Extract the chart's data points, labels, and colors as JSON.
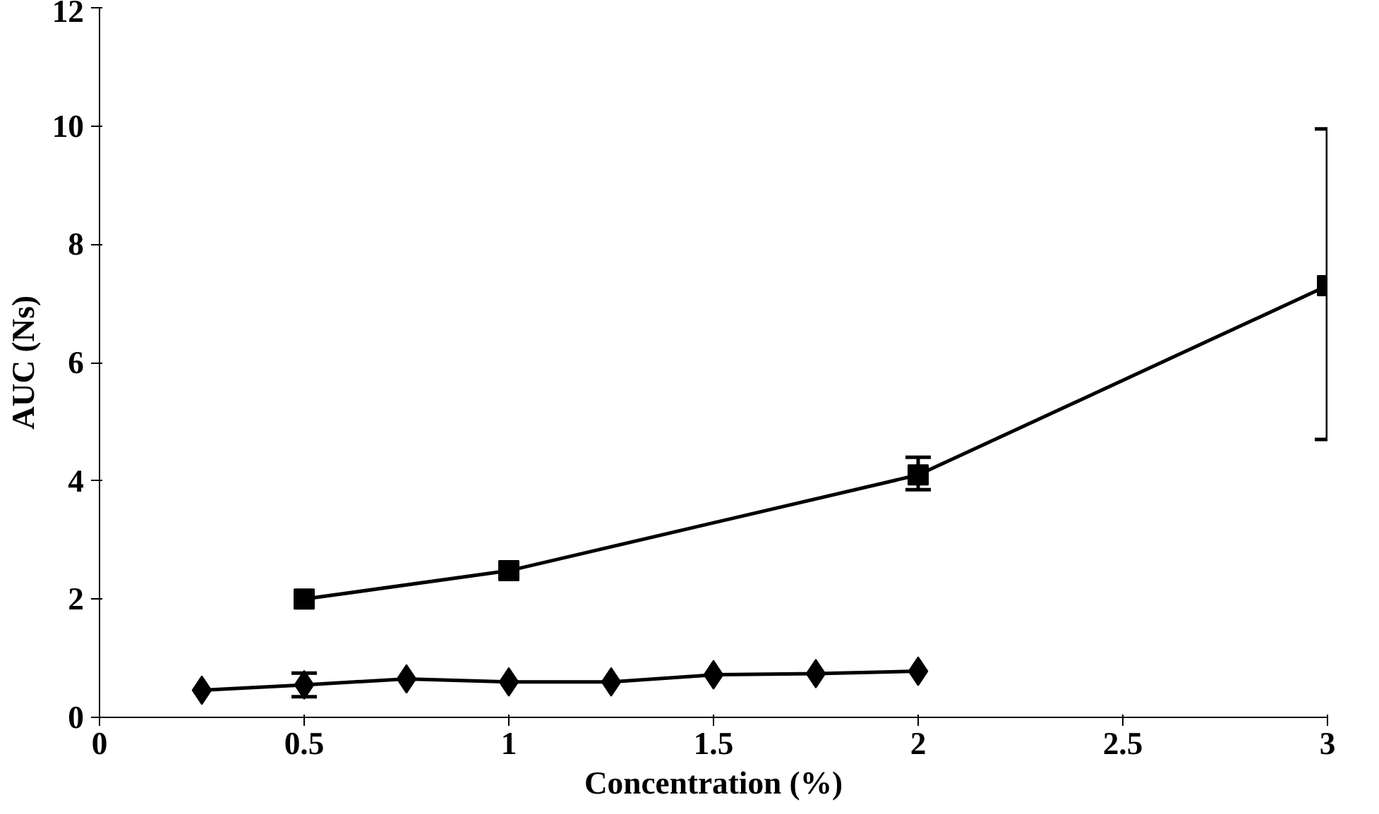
{
  "chart_data": {
    "type": "line",
    "xlabel": "Concentration (%)",
    "ylabel": "AUC (Ns)",
    "xlim": [
      0,
      3
    ],
    "ylim": [
      0,
      12
    ],
    "xticks": [
      0,
      0.5,
      1,
      1.5,
      2,
      2.5,
      3
    ],
    "yticks": [
      0,
      2,
      4,
      6,
      8,
      10,
      12
    ],
    "grid": false,
    "line_style": "solid",
    "series": [
      {
        "color": "#000000",
        "marker": "square",
        "x": [
          0.5,
          1,
          2,
          3
        ],
        "values": [
          2.0,
          2.48,
          4.1,
          7.3
        ],
        "errors": [
          null,
          null,
          [
            3.85,
            4.4
          ],
          [
            4.7,
            9.95
          ]
        ]
      },
      {
        "color": "#000000",
        "marker": "diamond",
        "x": [
          0.25,
          0.5,
          0.75,
          1,
          1.25,
          1.5,
          1.75,
          2
        ],
        "values": [
          0.46,
          0.55,
          0.65,
          0.6,
          0.6,
          0.72,
          0.74,
          0.78
        ],
        "errors": [
          null,
          0.2,
          null,
          null,
          null,
          null,
          null,
          null
        ]
      }
    ]
  }
}
